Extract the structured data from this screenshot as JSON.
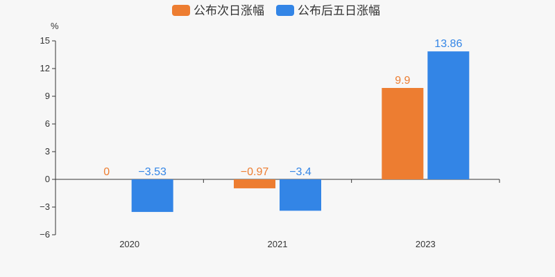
{
  "chart_data": {
    "type": "bar",
    "categories": [
      "2020",
      "2021",
      "2023"
    ],
    "series": [
      {
        "name": "公布次日涨幅",
        "values": [
          0,
          -0.97,
          9.9
        ],
        "labels": [
          "0",
          "−0.97",
          "9.9"
        ],
        "color": "#ed7d31"
      },
      {
        "name": "公布后五日涨幅",
        "values": [
          -3.53,
          -3.4,
          13.86
        ],
        "labels": [
          "−3.53",
          "−3.4",
          "13.86"
        ],
        "color": "#3385e6"
      }
    ],
    "y_unit": "%",
    "ylim": [
      -6,
      15
    ],
    "y_ticks": [
      15,
      12,
      9,
      6,
      3,
      0,
      -3,
      -6
    ],
    "y_tick_labels": [
      "15",
      "12",
      "9",
      "6",
      "3",
      "0",
      "−3",
      "−6"
    ],
    "grid": false,
    "legend_position": "top-center"
  },
  "colors": {
    "background": "#f7f7f7",
    "axis": "#333333",
    "text": "#333333"
  }
}
